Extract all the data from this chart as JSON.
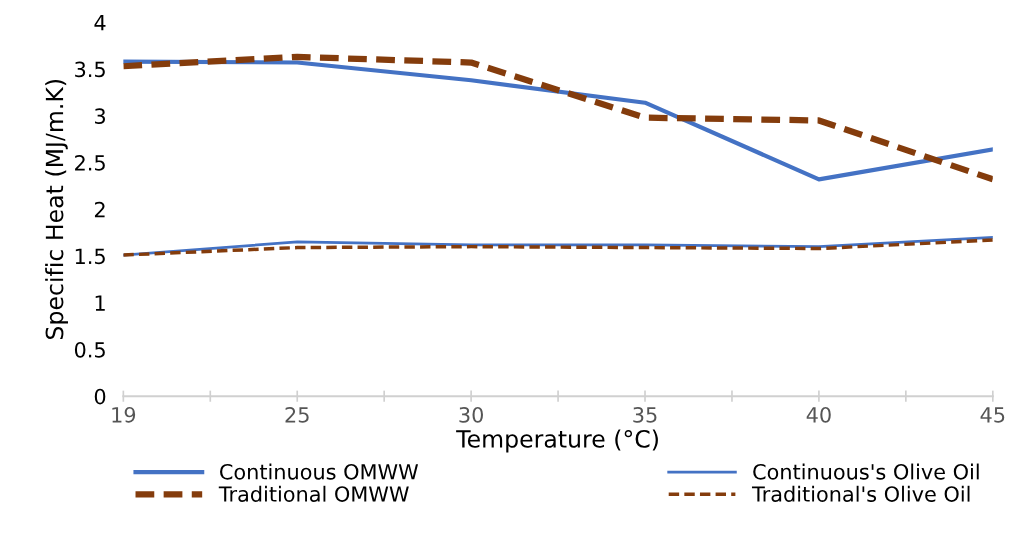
{
  "chart_data": {
    "type": "line",
    "xlabel": "Temperature (°C)",
    "ylabel": "Specific Heat (MJ/m.K)",
    "categories": [
      "19",
      "25",
      "30",
      "35",
      "40",
      "45"
    ],
    "series": [
      {
        "name": "Continuous OMWW",
        "color": "#4472c4",
        "line_style": "solid",
        "values": [
          3.58,
          3.57,
          3.38,
          3.14,
          2.32,
          2.64
        ]
      },
      {
        "name": "Traditional OMWW",
        "color": "#843c0c",
        "line_style": "dashed",
        "values": [
          3.53,
          3.63,
          3.57,
          2.98,
          2.95,
          2.32
        ]
      },
      {
        "name": "Continuous's Olive Oil",
        "color": "#4472c4",
        "line_style": "solid",
        "values": [
          1.51,
          1.65,
          1.62,
          1.62,
          1.6,
          1.7
        ]
      },
      {
        "name": "Traditional's Olive Oil",
        "color": "#843c0c",
        "line_style": "dashed",
        "values": [
          1.51,
          1.59,
          1.6,
          1.59,
          1.58,
          1.67
        ]
      }
    ],
    "ylim": [
      0,
      4
    ],
    "yticks": [
      0,
      0.5,
      1,
      1.5,
      2,
      2.5,
      3,
      3.5,
      4
    ],
    "grid": false,
    "legend": "bottom",
    "marker": "none"
  }
}
